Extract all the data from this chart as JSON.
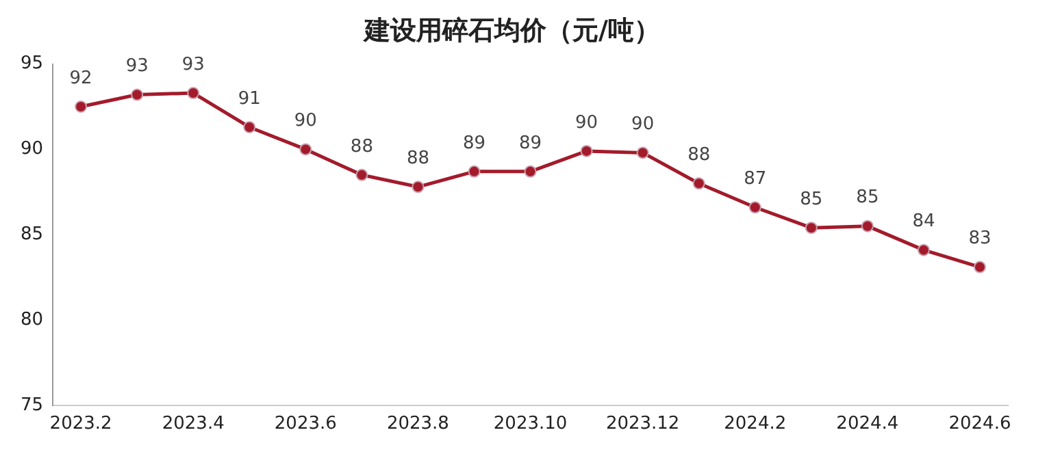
{
  "chart_data": {
    "type": "line",
    "title": "建设用碎石均价（元/吨）",
    "categories": [
      "2023.2",
      null,
      "2023.4",
      null,
      "2023.6",
      null,
      "2023.8",
      null,
      "2023.10",
      null,
      "2023.12",
      null,
      "2024.2",
      null,
      "2024.4",
      null,
      "2024.6"
    ],
    "series": [
      {
        "color": "#a31b2b",
        "values": [
          92.5,
          93.2,
          93.3,
          91.3,
          90.0,
          88.5,
          87.8,
          88.7,
          88.7,
          89.9,
          89.8,
          88.0,
          86.6,
          85.4,
          85.5,
          84.1,
          83.1
        ],
        "value_labels": [
          "92",
          "93",
          "93",
          "91",
          "90",
          "88",
          "88",
          "89",
          "89",
          "90",
          "90",
          "88",
          "87",
          "85",
          "85",
          "84",
          "83"
        ]
      }
    ],
    "ylim": [
      75,
      95
    ],
    "yticks": [
      75,
      80,
      85,
      90,
      95
    ],
    "grid": false,
    "legend": false,
    "marker": "circle",
    "line_style": "solid"
  }
}
